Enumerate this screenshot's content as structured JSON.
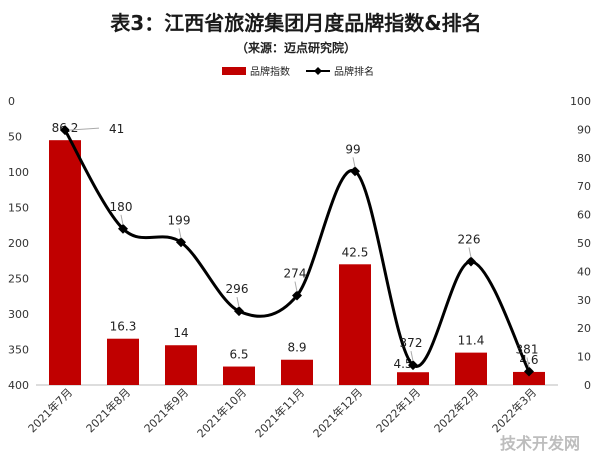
{
  "chart_data": {
    "type": "bar+line",
    "title": "表3：江西省旅游集团月度品牌指数&排名",
    "subtitle": "（来源：迈点研究院）",
    "categories": [
      "2021年7月",
      "2021年8月",
      "2021年9月",
      "2021年10月",
      "2021年11月",
      "2021年12月",
      "2022年1月",
      "2022年2月",
      "2022年3月"
    ],
    "series": [
      {
        "name": "品牌指数",
        "kind": "bar",
        "axis": "right",
        "color": "#c00000",
        "values": [
          86.2,
          16.3,
          14,
          6.5,
          8.9,
          42.5,
          4.5,
          11.4,
          4.6
        ]
      },
      {
        "name": "品牌排名",
        "kind": "line",
        "axis": "left",
        "color": "#000000",
        "values": [
          41,
          180,
          199,
          296,
          274,
          99,
          372,
          226,
          381
        ]
      }
    ],
    "left_axis": {
      "range": [
        0,
        400
      ],
      "inverted": true,
      "ticks": [
        0,
        50,
        100,
        150,
        200,
        250,
        300,
        350,
        400
      ]
    },
    "right_axis": {
      "range": [
        0,
        100
      ],
      "ticks": [
        0,
        10,
        20,
        30,
        40,
        50,
        60,
        70,
        80,
        90,
        100
      ]
    },
    "legend_position": "top-center",
    "grid": false
  },
  "watermark": "技术开发网"
}
